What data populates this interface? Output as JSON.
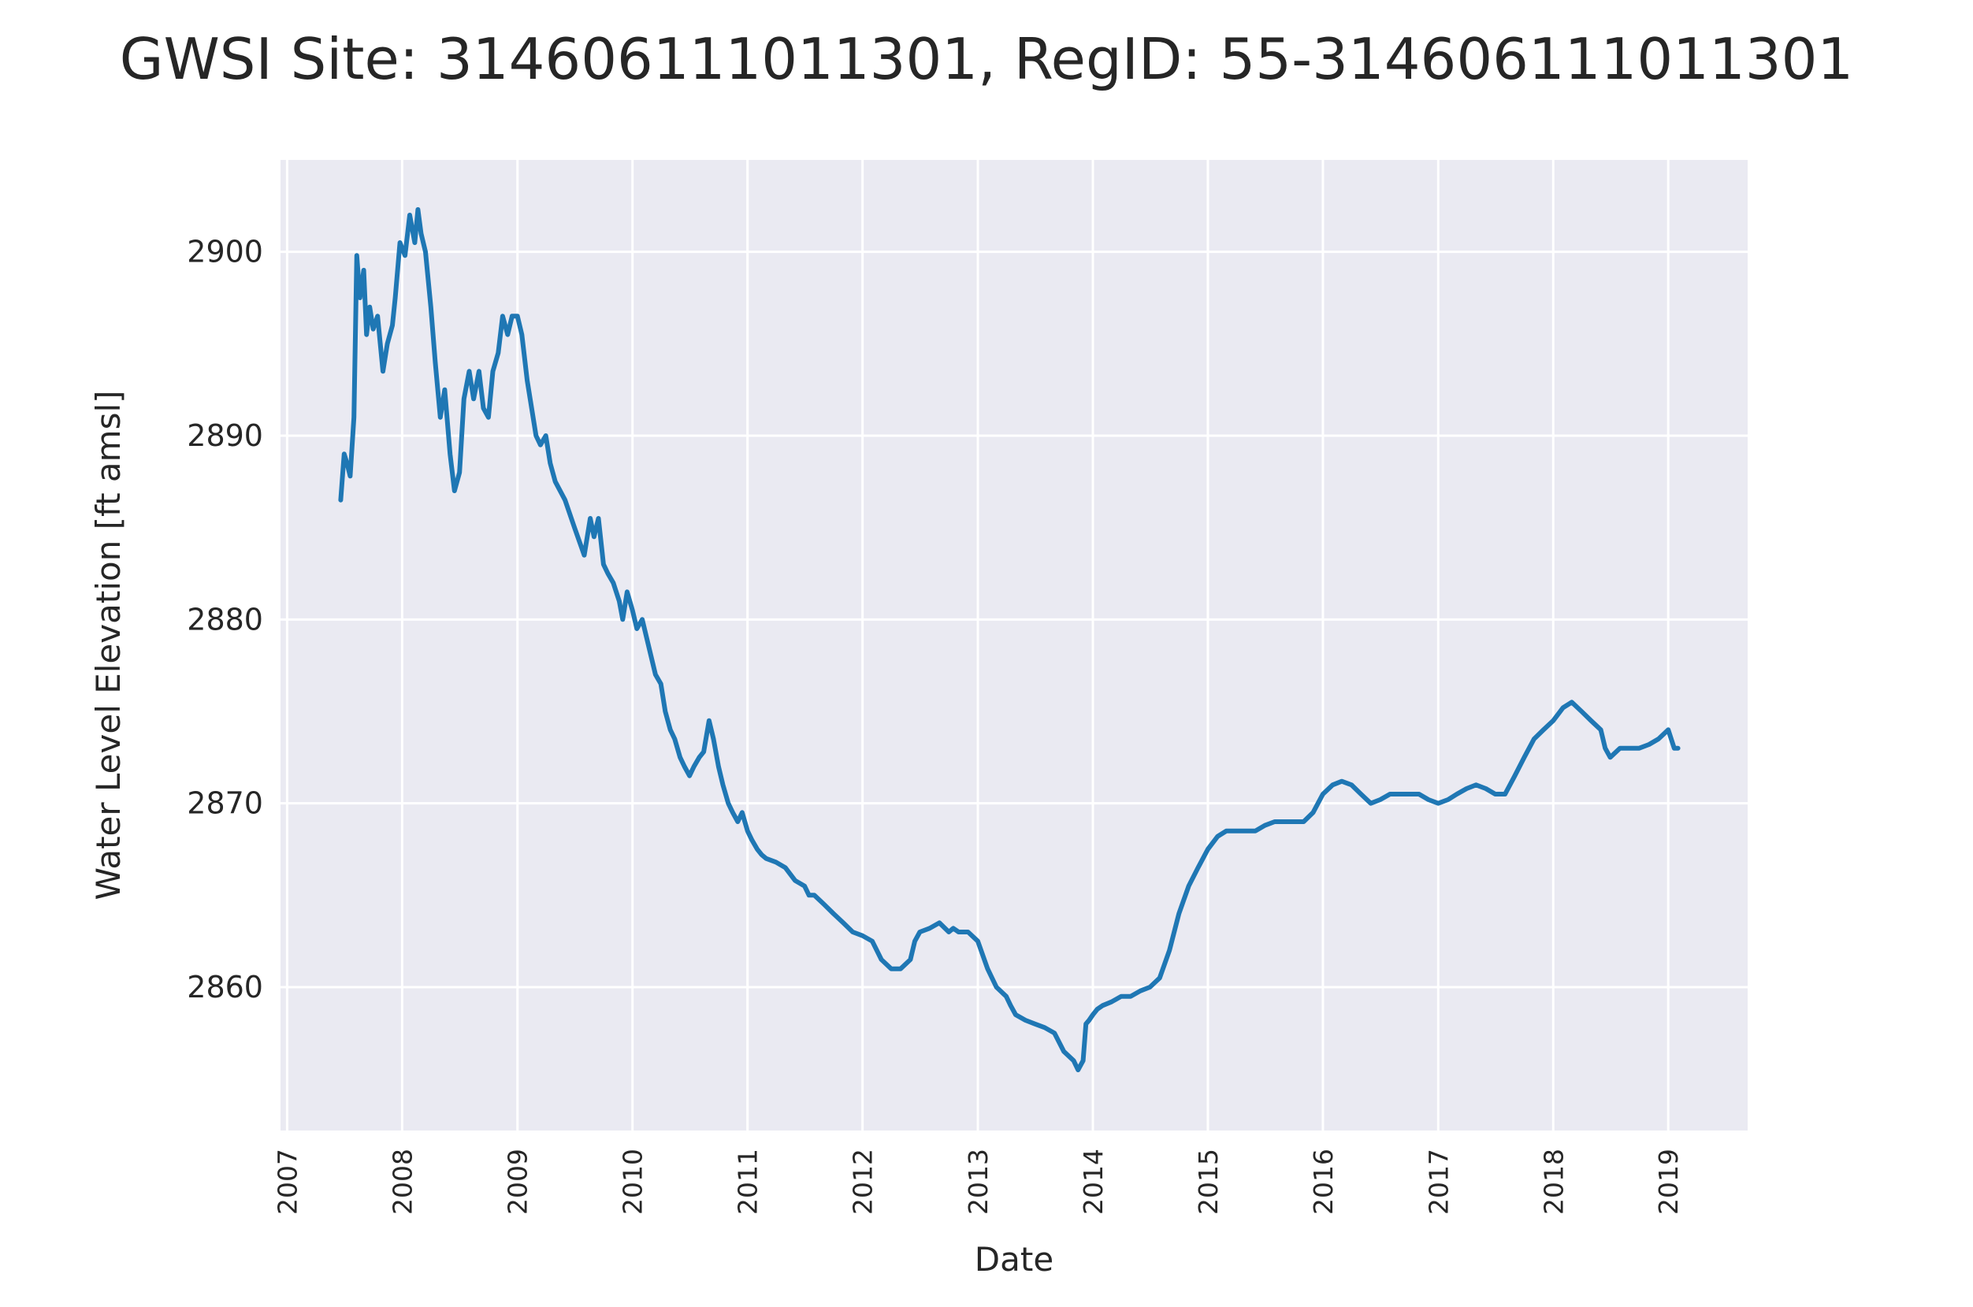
{
  "chart_data": {
    "type": "line",
    "title": "GWSI Site: 314606111011301, RegID: 55-314606111011301",
    "xlabel": "Date",
    "ylabel": "Water Level Elevation [ft amsl]",
    "x_ticks": [
      "2007",
      "2008",
      "2009",
      "2010",
      "2011",
      "2012",
      "2013",
      "2014",
      "2015",
      "2016",
      "2017",
      "2018",
      "2019"
    ],
    "y_ticks": [
      2860,
      2870,
      2880,
      2890,
      2900
    ],
    "xlim": [
      "2006-12-11",
      "2019-09-10"
    ],
    "ylim": [
      2852.2,
      2905
    ],
    "grid": true,
    "legend": "none",
    "background_color": "#eaeaf2",
    "line_color": "#1f77b4",
    "series": [
      {
        "x": [
          "2007-06-20",
          "2007-07-01",
          "2007-07-10",
          "2007-07-20",
          "2007-08-01",
          "2007-08-10",
          "2007-08-20",
          "2007-09-01",
          "2007-09-10",
          "2007-09-20",
          "2007-10-01",
          "2007-10-15",
          "2007-11-01",
          "2007-11-15",
          "2007-12-01",
          "2007-12-10",
          "2007-12-25",
          "2008-01-10",
          "2008-01-25",
          "2008-02-10",
          "2008-02-20",
          "2008-03-01",
          "2008-03-15",
          "2008-04-01",
          "2008-04-15",
          "2008-05-01",
          "2008-05-15",
          "2008-06-01",
          "2008-06-15",
          "2008-07-01",
          "2008-07-15",
          "2008-08-01",
          "2008-08-15",
          "2008-09-01",
          "2008-09-15",
          "2008-10-01",
          "2008-10-15",
          "2008-11-01",
          "2008-11-15",
          "2008-12-01",
          "2008-12-15",
          "2009-01-01",
          "2009-01-15",
          "2009-02-01",
          "2009-02-15",
          "2009-03-01",
          "2009-03-15",
          "2009-04-01",
          "2009-04-15",
          "2009-05-01",
          "2009-06-01",
          "2009-07-01",
          "2009-08-01",
          "2009-08-20",
          "2009-09-01",
          "2009-09-15",
          "2009-10-01",
          "2009-10-15",
          "2009-11-01",
          "2009-11-20",
          "2009-12-01",
          "2009-12-15",
          "2010-01-01",
          "2010-01-15",
          "2010-02-01",
          "2010-02-15",
          "2010-03-01",
          "2010-03-15",
          "2010-04-01",
          "2010-04-15",
          "2010-05-01",
          "2010-05-15",
          "2010-06-01",
          "2010-06-15",
          "2010-07-01",
          "2010-07-15",
          "2010-08-01",
          "2010-08-15",
          "2010-09-01",
          "2010-09-15",
          "2010-10-01",
          "2010-10-15",
          "2010-11-01",
          "2010-11-15",
          "2010-12-01",
          "2010-12-15",
          "2011-01-01",
          "2011-01-15",
          "2011-02-01",
          "2011-02-15",
          "2011-03-01",
          "2011-04-01",
          "2011-05-01",
          "2011-06-01",
          "2011-07-01",
          "2011-07-15",
          "2011-08-01",
          "2011-09-01",
          "2011-10-01",
          "2011-11-01",
          "2011-12-01",
          "2012-01-01",
          "2012-02-01",
          "2012-03-01",
          "2012-04-01",
          "2012-05-01",
          "2012-06-01",
          "2012-06-15",
          "2012-07-01",
          "2012-08-01",
          "2012-09-01",
          "2012-10-01",
          "2012-10-15",
          "2012-11-01",
          "2012-12-01",
          "2013-01-01",
          "2013-02-01",
          "2013-03-01",
          "2013-04-01",
          "2013-04-15",
          "2013-05-01",
          "2013-06-01",
          "2013-07-01",
          "2013-08-01",
          "2013-09-01",
          "2013-10-01",
          "2013-11-01",
          "2013-11-15",
          "2013-12-01",
          "2013-12-10",
          "2013-12-20",
          "2014-01-01",
          "2014-01-15",
          "2014-02-01",
          "2014-03-01",
          "2014-04-01",
          "2014-05-01",
          "2014-06-01",
          "2014-07-01",
          "2014-08-01",
          "2014-09-01",
          "2014-10-01",
          "2014-11-01",
          "2014-12-01",
          "2015-01-01",
          "2015-02-01",
          "2015-03-01",
          "2015-04-01",
          "2015-05-01",
          "2015-06-01",
          "2015-07-01",
          "2015-08-01",
          "2015-09-01",
          "2015-10-01",
          "2015-11-01",
          "2015-12-01",
          "2016-01-01",
          "2016-02-01",
          "2016-03-01",
          "2016-04-01",
          "2016-05-01",
          "2016-06-01",
          "2016-07-01",
          "2016-08-01",
          "2016-09-01",
          "2016-10-01",
          "2016-11-01",
          "2016-12-01",
          "2017-01-01",
          "2017-02-01",
          "2017-03-01",
          "2017-04-01",
          "2017-05-01",
          "2017-06-01",
          "2017-07-01",
          "2017-08-01",
          "2017-09-01",
          "2017-10-01",
          "2017-11-01",
          "2017-12-01",
          "2018-01-01",
          "2018-02-01",
          "2018-03-01",
          "2018-04-01",
          "2018-05-01",
          "2018-06-01",
          "2018-06-15",
          "2018-07-01",
          "2018-08-01",
          "2018-09-01",
          "2018-10-01",
          "2018-11-01",
          "2018-12-01",
          "2019-01-01",
          "2019-01-20",
          "2019-02-01"
        ],
        "y": [
          2886.5,
          2889.0,
          2888.5,
          2887.8,
          2891.0,
          2899.8,
          2897.5,
          2899.0,
          2895.5,
          2897.0,
          2895.8,
          2896.5,
          2893.5,
          2895.0,
          2896.0,
          2897.5,
          2900.5,
          2899.8,
          2902.0,
          2900.5,
          2902.3,
          2901.0,
          2900.0,
          2897.0,
          2894.0,
          2891.0,
          2892.5,
          2889.0,
          2887.0,
          2888.0,
          2892.0,
          2893.5,
          2892.0,
          2893.5,
          2891.5,
          2891.0,
          2893.5,
          2894.5,
          2896.5,
          2895.5,
          2896.5,
          2896.5,
          2895.5,
          2893.0,
          2891.5,
          2890.0,
          2889.5,
          2890.0,
          2888.5,
          2887.5,
          2886.5,
          2885.0,
          2883.5,
          2885.5,
          2884.5,
          2885.5,
          2883.0,
          2882.5,
          2882.0,
          2881.0,
          2880.0,
          2881.5,
          2880.5,
          2879.5,
          2880.0,
          2879.0,
          2878.0,
          2877.0,
          2876.5,
          2875.0,
          2874.0,
          2873.5,
          2872.5,
          2872.0,
          2871.5,
          2872.0,
          2872.5,
          2872.8,
          2874.5,
          2873.5,
          2872.0,
          2871.0,
          2870.0,
          2869.5,
          2869.0,
          2869.5,
          2868.5,
          2868.0,
          2867.5,
          2867.2,
          2867.0,
          2866.8,
          2866.5,
          2865.8,
          2865.5,
          2865.0,
          2865.0,
          2864.5,
          2864.0,
          2863.5,
          2863.0,
          2862.8,
          2862.5,
          2861.5,
          2861.0,
          2861.0,
          2861.5,
          2862.5,
          2863.0,
          2863.2,
          2863.5,
          2863.0,
          2863.2,
          2863.0,
          2863.0,
          2862.5,
          2861.0,
          2860.0,
          2859.5,
          2859.0,
          2858.5,
          2858.2,
          2858.0,
          2857.8,
          2857.5,
          2856.5,
          2856.0,
          2855.5,
          2856.0,
          2858.0,
          2858.2,
          2858.5,
          2858.8,
          2859.0,
          2859.2,
          2859.5,
          2859.5,
          2859.8,
          2860.0,
          2860.5,
          2862.0,
          2864.0,
          2865.5,
          2866.5,
          2867.5,
          2868.2,
          2868.5,
          2868.5,
          2868.5,
          2868.5,
          2868.8,
          2869.0,
          2869.0,
          2869.0,
          2869.0,
          2869.5,
          2870.5,
          2871.0,
          2871.2,
          2871.0,
          2870.5,
          2870.0,
          2870.2,
          2870.5,
          2870.5,
          2870.5,
          2870.5,
          2870.2,
          2870.0,
          2870.2,
          2870.5,
          2870.8,
          2871.0,
          2870.8,
          2870.5,
          2870.5,
          2871.5,
          2872.5,
          2873.5,
          2874.0,
          2874.5,
          2875.2,
          2875.5,
          2875.0,
          2874.5,
          2874.0,
          2873.0,
          2872.5,
          2873.0,
          2873.0,
          2873.0,
          2873.2,
          2873.5,
          2874.0,
          2873.0,
          2873.0
        ]
      }
    ]
  }
}
